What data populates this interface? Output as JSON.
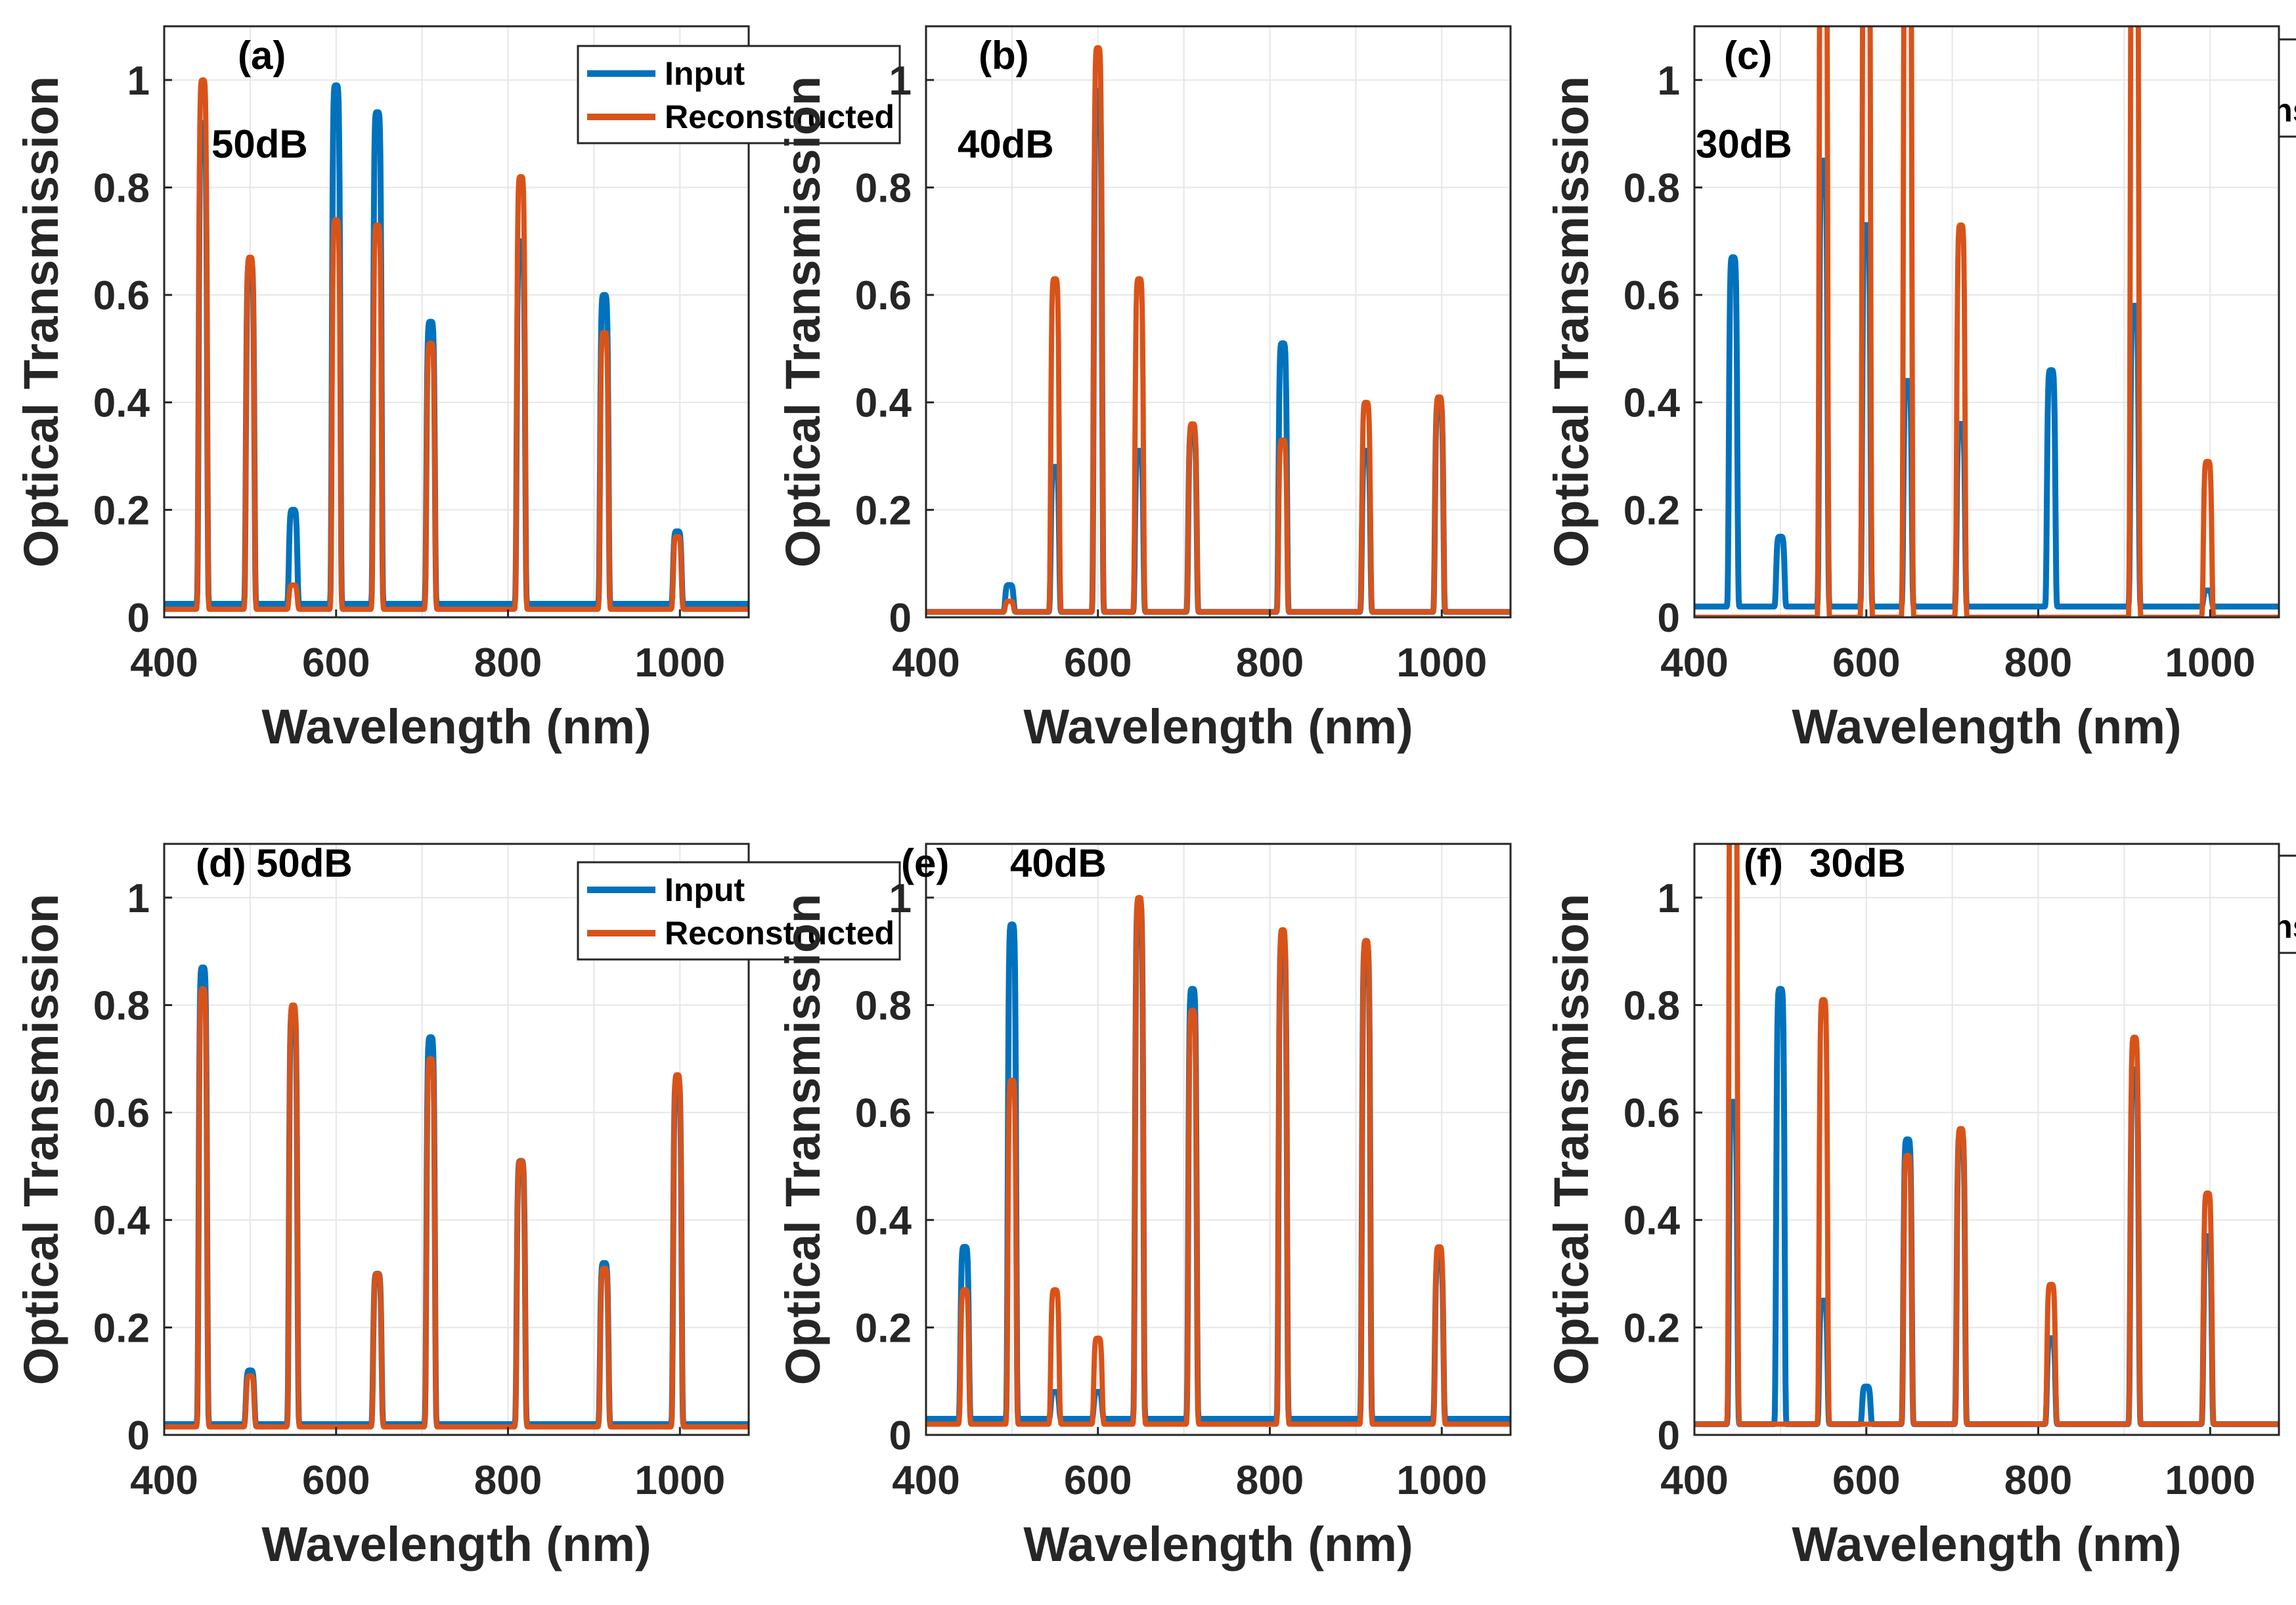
{
  "colors": {
    "input": "#0072BD",
    "reconstructed": "#D95319",
    "grid": "#e6e6e6",
    "axis": "#262626"
  },
  "chart_data": [
    {
      "type": "line",
      "panel_label": "(a)",
      "annotation": "50dB",
      "xlabel": "Wavelength (nm)",
      "ylabel": "Optical Transmission",
      "xlim": [
        400,
        1080
      ],
      "ylim": [
        0,
        1.1
      ],
      "xticks": [
        "400",
        "600",
        "800",
        "1000"
      ],
      "yticks": [
        "0",
        "0.2",
        "0.4",
        "0.6",
        "0.8",
        "1"
      ],
      "legend": [
        "Input",
        "Reconstructed"
      ],
      "legend_position": "top-right",
      "series": [
        {
          "name": "Input",
          "baseline": 0.025,
          "peaks": [
            [
              445,
              0.92
            ],
            [
              500,
              0.66
            ],
            [
              550,
              0.2
            ],
            [
              600,
              0.99
            ],
            [
              648,
              0.94
            ],
            [
              710,
              0.55
            ],
            [
              815,
              0.7
            ],
            [
              912,
              0.6
            ],
            [
              997,
              0.16
            ]
          ]
        },
        {
          "name": "Reconstructed",
          "baseline": 0.015,
          "peaks": [
            [
              445,
              1.0
            ],
            [
              500,
              0.67
            ],
            [
              550,
              0.06
            ],
            [
              600,
              0.74
            ],
            [
              648,
              0.73
            ],
            [
              710,
              0.51
            ],
            [
              815,
              0.82
            ],
            [
              912,
              0.53
            ],
            [
              997,
              0.15
            ]
          ]
        }
      ]
    },
    {
      "type": "line",
      "panel_label": "(b)",
      "annotation": "40dB",
      "xlabel": "Wavelength (nm)",
      "ylabel": "Optical Transmission",
      "xlim": [
        400,
        1080
      ],
      "ylim": [
        0,
        1.1
      ],
      "xticks": [
        "400",
        "600",
        "800",
        "1000"
      ],
      "yticks": [
        "0",
        "0.2",
        "0.4",
        "0.6",
        "0.8",
        "1"
      ],
      "legend": [
        "Input",
        "Reconstructed"
      ],
      "legend_position": "top-right",
      "series": [
        {
          "name": "Input",
          "baseline": 0.01,
          "peaks": [
            [
              497,
              0.06
            ],
            [
              550,
              0.28
            ],
            [
              600,
              0.98
            ],
            [
              648,
              0.31
            ],
            [
              710,
              0.35
            ],
            [
              815,
              0.51
            ],
            [
              912,
              0.31
            ],
            [
              997,
              0.4
            ]
          ]
        },
        {
          "name": "Reconstructed",
          "baseline": 0.01,
          "peaks": [
            [
              497,
              0.03
            ],
            [
              550,
              0.63
            ],
            [
              600,
              1.06
            ],
            [
              648,
              0.63
            ],
            [
              710,
              0.36
            ],
            [
              815,
              0.33
            ],
            [
              912,
              0.4
            ],
            [
              997,
              0.41
            ]
          ]
        }
      ]
    },
    {
      "type": "line",
      "panel_label": "(c)",
      "annotation": "30dB",
      "xlabel": "Wavelength (nm)",
      "ylabel": "Optical Transmission",
      "xlim": [
        400,
        1080
      ],
      "ylim": [
        0,
        1.1
      ],
      "xticks": [
        "400",
        "600",
        "800",
        "1000"
      ],
      "yticks": [
        "0",
        "0.2",
        "0.4",
        "0.6",
        "0.8",
        "1"
      ],
      "legend": [
        "Input",
        "Reconstructed"
      ],
      "legend_position": "top-right",
      "series": [
        {
          "name": "Input",
          "baseline": 0.02,
          "peaks": [
            [
              445,
              0.67
            ],
            [
              500,
              0.15
            ],
            [
              550,
              0.85
            ],
            [
              600,
              0.73
            ],
            [
              648,
              0.44
            ],
            [
              710,
              0.36
            ],
            [
              815,
              0.46
            ],
            [
              912,
              0.58
            ],
            [
              997,
              0.05
            ]
          ]
        },
        {
          "name": "Reconstructed",
          "baseline": 0.0,
          "peaks": [
            [
              550,
              1.6
            ],
            [
              600,
              1.6
            ],
            [
              648,
              1.6
            ],
            [
              710,
              0.73
            ],
            [
              912,
              1.6
            ],
            [
              997,
              0.29
            ]
          ]
        }
      ]
    },
    {
      "type": "line",
      "panel_label": "(d)",
      "annotation": "50dB",
      "xlabel": "Wavelength (nm)",
      "ylabel": "Optical Transmission",
      "xlim": [
        400,
        1080
      ],
      "ylim": [
        0,
        1.1
      ],
      "xticks": [
        "400",
        "600",
        "800",
        "1000"
      ],
      "yticks": [
        "0",
        "0.2",
        "0.4",
        "0.6",
        "0.8",
        "1"
      ],
      "legend": [
        "Input",
        "Reconstructed"
      ],
      "legend_position": "top-right",
      "series": [
        {
          "name": "Input",
          "baseline": 0.02,
          "peaks": [
            [
              445,
              0.87
            ],
            [
              500,
              0.12
            ],
            [
              550,
              0.79
            ],
            [
              648,
              0.3
            ],
            [
              710,
              0.74
            ],
            [
              815,
              0.51
            ],
            [
              912,
              0.32
            ],
            [
              997,
              0.66
            ]
          ]
        },
        {
          "name": "Reconstructed",
          "baseline": 0.015,
          "peaks": [
            [
              445,
              0.83
            ],
            [
              500,
              0.11
            ],
            [
              550,
              0.8
            ],
            [
              648,
              0.3
            ],
            [
              710,
              0.7
            ],
            [
              815,
              0.51
            ],
            [
              912,
              0.31
            ],
            [
              997,
              0.67
            ]
          ]
        }
      ]
    },
    {
      "type": "line",
      "panel_label": "(e)",
      "annotation": "40dB",
      "xlabel": "Wavelength (nm)",
      "ylabel": "Optical Transmission",
      "xlim": [
        400,
        1080
      ],
      "ylim": [
        0,
        1.1
      ],
      "xticks": [
        "400",
        "600",
        "800",
        "1000"
      ],
      "yticks": [
        "0",
        "0.2",
        "0.4",
        "0.6",
        "0.8",
        "1"
      ],
      "legend": [
        "Input",
        "Reconstructed"
      ],
      "legend_position": "top-right",
      "series": [
        {
          "name": "Input",
          "baseline": 0.03,
          "peaks": [
            [
              445,
              0.35
            ],
            [
              500,
              0.95
            ],
            [
              550,
              0.08
            ],
            [
              600,
              0.08
            ],
            [
              648,
              0.99
            ],
            [
              710,
              0.83
            ],
            [
              815,
              0.92
            ],
            [
              912,
              0.91
            ],
            [
              997,
              0.33
            ]
          ]
        },
        {
          "name": "Reconstructed",
          "baseline": 0.02,
          "peaks": [
            [
              445,
              0.27
            ],
            [
              500,
              0.66
            ],
            [
              550,
              0.27
            ],
            [
              600,
              0.18
            ],
            [
              648,
              1.0
            ],
            [
              710,
              0.79
            ],
            [
              815,
              0.94
            ],
            [
              912,
              0.92
            ],
            [
              997,
              0.35
            ]
          ]
        }
      ]
    },
    {
      "type": "line",
      "panel_label": "(f)",
      "annotation": "30dB",
      "xlabel": "Wavelength (nm)",
      "ylabel": "Optical Transmission",
      "xlim": [
        400,
        1080
      ],
      "ylim": [
        0,
        1.1
      ],
      "xticks": [
        "400",
        "600",
        "800",
        "1000"
      ],
      "yticks": [
        "0",
        "0.2",
        "0.4",
        "0.6",
        "0.8",
        "1"
      ],
      "legend": [
        "Input",
        "Reconstructed"
      ],
      "legend_position": "top-right",
      "series": [
        {
          "name": "Input",
          "baseline": 0.02,
          "peaks": [
            [
              445,
              0.62
            ],
            [
              500,
              0.83
            ],
            [
              550,
              0.25
            ],
            [
              600,
              0.09
            ],
            [
              648,
              0.55
            ],
            [
              710,
              0.56
            ],
            [
              815,
              0.18
            ],
            [
              912,
              0.68
            ],
            [
              997,
              0.37
            ]
          ]
        },
        {
          "name": "Reconstructed",
          "baseline": 0.02,
          "peaks": [
            [
              445,
              1.6
            ],
            [
              550,
              0.81
            ],
            [
              648,
              0.52
            ],
            [
              710,
              0.57
            ],
            [
              815,
              0.28
            ],
            [
              912,
              0.74
            ],
            [
              997,
              0.45
            ]
          ]
        }
      ]
    }
  ]
}
